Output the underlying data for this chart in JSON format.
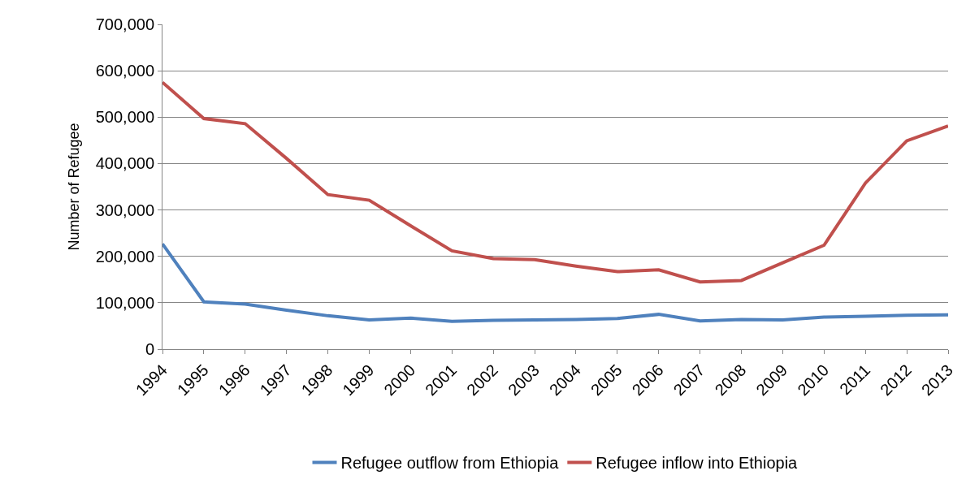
{
  "chart_data": {
    "type": "line",
    "ylabel": "Number of Refugee",
    "categories": [
      "1994",
      "1995",
      "1996",
      "1997",
      "1998",
      "1999",
      "2000",
      "2001",
      "2002",
      "2003",
      "2004",
      "2005",
      "2006",
      "2007",
      "2008",
      "2009",
      "2010",
      "2011",
      "2012",
      "2013"
    ],
    "series": [
      {
        "name": "Refugee outflow from Ethiopia",
        "color": "#4f81bd",
        "values": [
          227000,
          102000,
          97000,
          84000,
          72000,
          63000,
          67000,
          60000,
          62000,
          63000,
          64000,
          66000,
          75000,
          61000,
          64000,
          63000,
          69000,
          71000,
          73000,
          74000
        ]
      },
      {
        "name": "Refugee inflow into Ethiopia",
        "color": "#c0504d",
        "values": [
          575000,
          497000,
          486000,
          411000,
          333000,
          321000,
          266000,
          212000,
          195000,
          193000,
          179000,
          167000,
          171000,
          145000,
          148000,
          186000,
          224000,
          358000,
          449000,
          481000
        ]
      }
    ],
    "ylim": [
      0,
      700000
    ],
    "yticks": [
      {
        "value": 0,
        "label": "0"
      },
      {
        "value": 100000,
        "label": "100,000"
      },
      {
        "value": 200000,
        "label": "200,000"
      },
      {
        "value": 300000,
        "label": "300,000"
      },
      {
        "value": 400000,
        "label": "400,000"
      },
      {
        "value": 500000,
        "label": "500,000"
      },
      {
        "value": 600000,
        "label": "600,000"
      },
      {
        "value": 700000,
        "label": "700,000"
      }
    ],
    "grid": "y",
    "legend": "bottom",
    "marker": "none",
    "line_style": "solid"
  }
}
